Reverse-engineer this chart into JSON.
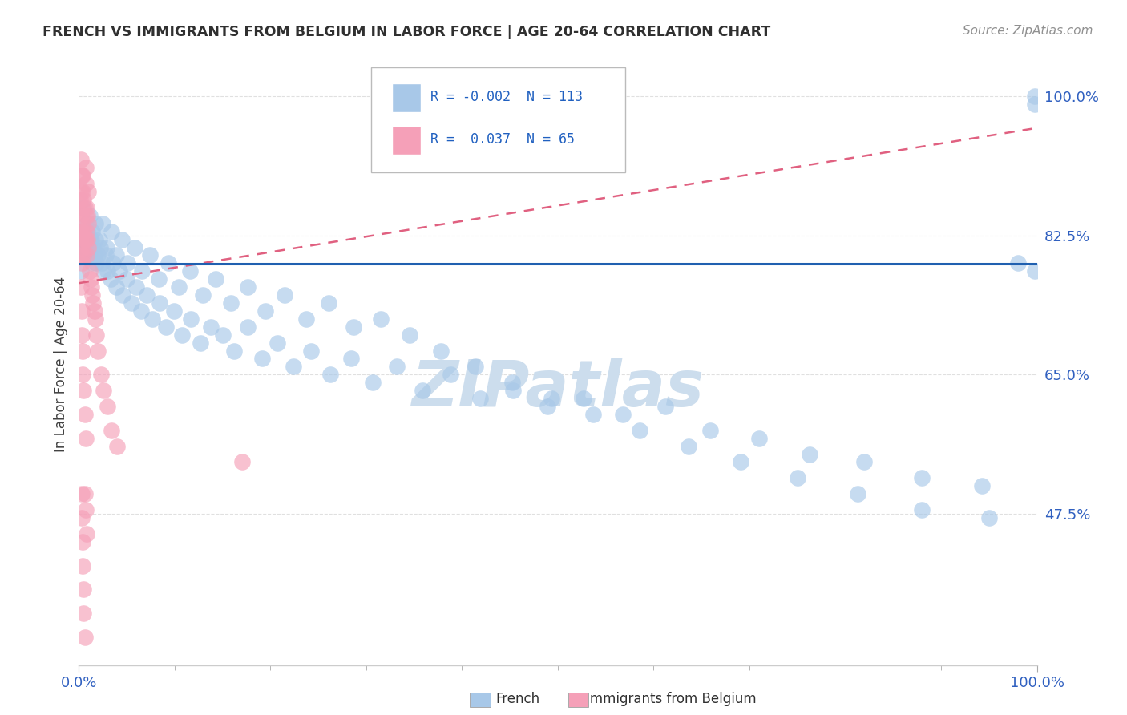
{
  "title": "FRENCH VS IMMIGRANTS FROM BELGIUM IN LABOR FORCE | AGE 20-64 CORRELATION CHART",
  "source": "Source: ZipAtlas.com",
  "ylabel": "In Labor Force | Age 20-64",
  "ytick_labels": [
    "47.5%",
    "65.0%",
    "82.5%",
    "100.0%"
  ],
  "ytick_values": [
    0.475,
    0.65,
    0.825,
    1.0
  ],
  "legend_blue_r": "-0.002",
  "legend_blue_n": "113",
  "legend_pink_r": "0.037",
  "legend_pink_n": "65",
  "blue_color": "#a8c8e8",
  "pink_color": "#f5a0b8",
  "blue_line_color": "#2060b0",
  "pink_line_color": "#e06080",
  "pink_dash_color": "#d08090",
  "watermark_color": "#ccdded",
  "title_color": "#303030",
  "source_color": "#909090",
  "tick_color": "#3060c0",
  "ylabel_color": "#404040",
  "grid_color": "#e0e0e0",
  "background_color": "#ffffff",
  "blue_x": [
    0.002,
    0.003,
    0.004,
    0.005,
    0.006,
    0.007,
    0.008,
    0.009,
    0.01,
    0.011,
    0.012,
    0.013,
    0.014,
    0.015,
    0.016,
    0.017,
    0.018,
    0.02,
    0.022,
    0.024,
    0.026,
    0.028,
    0.03,
    0.033,
    0.036,
    0.039,
    0.042,
    0.046,
    0.05,
    0.055,
    0.06,
    0.065,
    0.071,
    0.077,
    0.084,
    0.091,
    0.099,
    0.108,
    0.117,
    0.127,
    0.138,
    0.15,
    0.162,
    0.176,
    0.191,
    0.207,
    0.224,
    0.242,
    0.262,
    0.284,
    0.307,
    0.332,
    0.359,
    0.388,
    0.419,
    0.453,
    0.489,
    0.527,
    0.568,
    0.612,
    0.659,
    0.71,
    0.763,
    0.82,
    0.88,
    0.943,
    0.005,
    0.008,
    0.011,
    0.014,
    0.017,
    0.021,
    0.025,
    0.029,
    0.034,
    0.039,
    0.045,
    0.051,
    0.058,
    0.066,
    0.074,
    0.083,
    0.093,
    0.104,
    0.116,
    0.129,
    0.143,
    0.159,
    0.176,
    0.195,
    0.215,
    0.237,
    0.261,
    0.287,
    0.315,
    0.345,
    0.378,
    0.414,
    0.452,
    0.493,
    0.537,
    0.585,
    0.636,
    0.691,
    0.75,
    0.813,
    0.88,
    0.95,
    0.98,
    0.998,
    0.998,
    0.998,
    0.002
  ],
  "blue_y": [
    0.82,
    0.83,
    0.82,
    0.81,
    0.83,
    0.82,
    0.8,
    0.83,
    0.81,
    0.82,
    0.8,
    0.82,
    0.79,
    0.81,
    0.8,
    0.82,
    0.79,
    0.8,
    0.81,
    0.79,
    0.78,
    0.8,
    0.78,
    0.77,
    0.79,
    0.76,
    0.78,
    0.75,
    0.77,
    0.74,
    0.76,
    0.73,
    0.75,
    0.72,
    0.74,
    0.71,
    0.73,
    0.7,
    0.72,
    0.69,
    0.71,
    0.7,
    0.68,
    0.71,
    0.67,
    0.69,
    0.66,
    0.68,
    0.65,
    0.67,
    0.64,
    0.66,
    0.63,
    0.65,
    0.62,
    0.63,
    0.61,
    0.62,
    0.6,
    0.61,
    0.58,
    0.57,
    0.55,
    0.54,
    0.52,
    0.51,
    0.86,
    0.84,
    0.85,
    0.83,
    0.84,
    0.82,
    0.84,
    0.81,
    0.83,
    0.8,
    0.82,
    0.79,
    0.81,
    0.78,
    0.8,
    0.77,
    0.79,
    0.76,
    0.78,
    0.75,
    0.77,
    0.74,
    0.76,
    0.73,
    0.75,
    0.72,
    0.74,
    0.71,
    0.72,
    0.7,
    0.68,
    0.66,
    0.64,
    0.62,
    0.6,
    0.58,
    0.56,
    0.54,
    0.52,
    0.5,
    0.48,
    0.47,
    0.79,
    0.78,
    1.0,
    0.99,
    0.78
  ],
  "pink_x": [
    0.001,
    0.001,
    0.002,
    0.002,
    0.002,
    0.003,
    0.003,
    0.003,
    0.003,
    0.004,
    0.004,
    0.004,
    0.005,
    0.005,
    0.005,
    0.006,
    0.006,
    0.007,
    0.007,
    0.007,
    0.008,
    0.008,
    0.008,
    0.009,
    0.009,
    0.01,
    0.01,
    0.01,
    0.011,
    0.012,
    0.013,
    0.014,
    0.015,
    0.016,
    0.017,
    0.018,
    0.02,
    0.023,
    0.026,
    0.03,
    0.034,
    0.04,
    0.007,
    0.004,
    0.002,
    0.003,
    0.002,
    0.003,
    0.003,
    0.004,
    0.004,
    0.005,
    0.006,
    0.007,
    0.17,
    0.003,
    0.003,
    0.004,
    0.004,
    0.005,
    0.005,
    0.006,
    0.006,
    0.007,
    0.008
  ],
  "pink_y": [
    0.87,
    0.83,
    0.88,
    0.85,
    0.82,
    0.9,
    0.86,
    0.83,
    0.8,
    0.88,
    0.84,
    0.81,
    0.87,
    0.83,
    0.8,
    0.86,
    0.82,
    0.89,
    0.85,
    0.82,
    0.86,
    0.83,
    0.8,
    0.85,
    0.82,
    0.88,
    0.84,
    0.81,
    0.78,
    0.77,
    0.76,
    0.75,
    0.74,
    0.73,
    0.72,
    0.7,
    0.68,
    0.65,
    0.63,
    0.61,
    0.58,
    0.56,
    0.91,
    0.9,
    0.92,
    0.79,
    0.76,
    0.73,
    0.7,
    0.68,
    0.65,
    0.63,
    0.6,
    0.57,
    0.54,
    0.5,
    0.47,
    0.44,
    0.41,
    0.38,
    0.35,
    0.32,
    0.5,
    0.48,
    0.45
  ],
  "xlim": [
    0.0,
    1.0
  ],
  "ylim": [
    0.285,
    1.04
  ],
  "blue_line_y0": 0.789,
  "blue_line_y1": 0.789,
  "pink_line_y0": 0.765,
  "pink_line_y1": 0.96
}
